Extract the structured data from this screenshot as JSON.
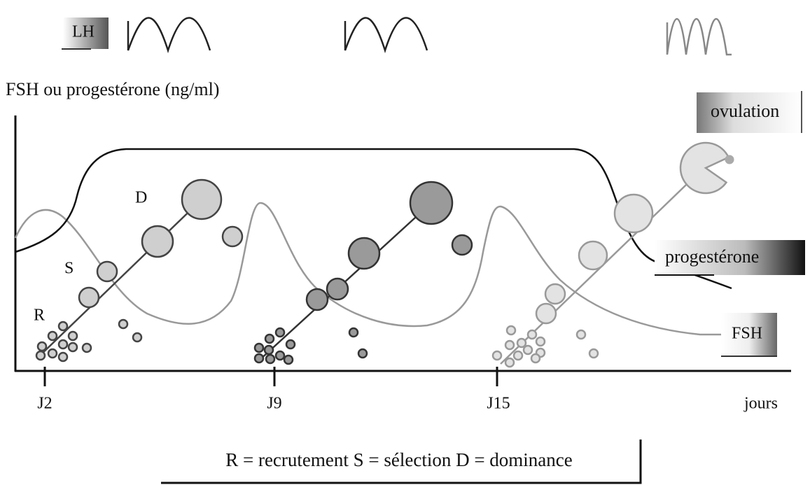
{
  "lh_label": "LH",
  "y_axis_label": "FSH ou progestérone (ng/ml)",
  "ovulation_label": "ovulation",
  "progesterone_label": "progestérone",
  "fsh_label": "FSH",
  "stage_labels": [
    "D",
    "S",
    "R"
  ],
  "x_ticks": [
    "J2",
    "J9",
    "J15"
  ],
  "x_axis_label": "jours",
  "legend": "R = recrutement  S = sélection  D = dominance"
}
